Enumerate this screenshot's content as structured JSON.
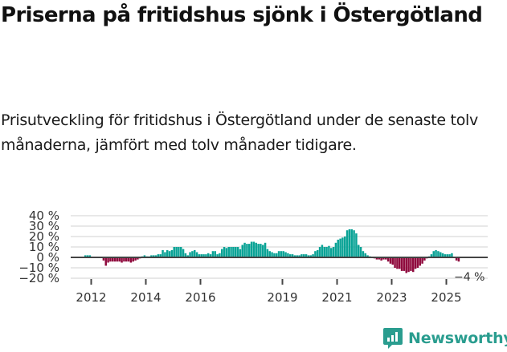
{
  "header": {
    "title": "Priserna på fritidshus sjönk i Östergötland",
    "subtitle": "Prisutveckling för fritidshus i Östergötland under de senaste tolv månaderna, jämfört med tolv månader tidigare."
  },
  "branding": {
    "name": "Newsworthy",
    "icon": "newsworthy-chart-bubble-icon",
    "color": "#2a9d8f"
  },
  "colors": {
    "positive": "#0aa396",
    "negative": "#8f0a3d",
    "zero_line": "#444444",
    "grid": "#e0e0e0"
  },
  "chart_data": {
    "type": "bar",
    "title": "Priserna på fritidshus sjönk i Östergötland",
    "subtitle": "Prisutveckling för fritidshus i Östergötland under de senaste tolv månaderna, jämfört med tolv månader tidigare.",
    "xlabel": "",
    "ylabel": "",
    "ylim": [
      -20,
      40
    ],
    "y_ticks": [
      "40 %",
      "30 %",
      "20 %",
      "10 %",
      "0 %",
      "−10 %",
      "−20 %"
    ],
    "y_tick_values": [
      40,
      30,
      20,
      10,
      0,
      -10,
      -20
    ],
    "x_ticks": [
      "2012",
      "2014",
      "2016",
      "2019",
      "2021",
      "2023",
      "2025"
    ],
    "grid": true,
    "legend": null,
    "annotation": {
      "label": "−4 %",
      "value": -4
    },
    "start_month": "2011-10",
    "frequency": "monthly",
    "values": [
      2,
      2,
      2,
      0,
      0,
      0,
      0,
      0,
      -3,
      -8,
      -5,
      -4,
      -4,
      -4,
      -4,
      -4,
      -5,
      -4,
      -4,
      -4,
      -5,
      -4,
      -3,
      -2,
      -1,
      1,
      2,
      1,
      1,
      2,
      2,
      2,
      3,
      3,
      7,
      5,
      7,
      6,
      7,
      10,
      10,
      10,
      10,
      8,
      4,
      2,
      5,
      6,
      7,
      5,
      3,
      3,
      3,
      3,
      4,
      3,
      6,
      6,
      3,
      4,
      8,
      10,
      9,
      10,
      10,
      10,
      10,
      10,
      8,
      12,
      14,
      13,
      13,
      15,
      15,
      14,
      13,
      13,
      12,
      14,
      8,
      6,
      5,
      4,
      4,
      6,
      6,
      6,
      5,
      4,
      3,
      3,
      2,
      2,
      2,
      3,
      3,
      3,
      2,
      2,
      3,
      6,
      7,
      10,
      12,
      10,
      10,
      11,
      9,
      10,
      14,
      17,
      18,
      19,
      20,
      26,
      27,
      27,
      26,
      23,
      12,
      10,
      6,
      4,
      2,
      1,
      0,
      -1,
      -2,
      -2,
      -3,
      -2,
      -2,
      -4,
      -6,
      -7,
      -10,
      -11,
      -11,
      -13,
      -13,
      -15,
      -14,
      -13,
      -14,
      -11,
      -10,
      -8,
      -6,
      -3,
      -1,
      1,
      3,
      6,
      7,
      6,
      5,
      4,
      3,
      3,
      3,
      4,
      0,
      -3,
      -4
    ]
  }
}
